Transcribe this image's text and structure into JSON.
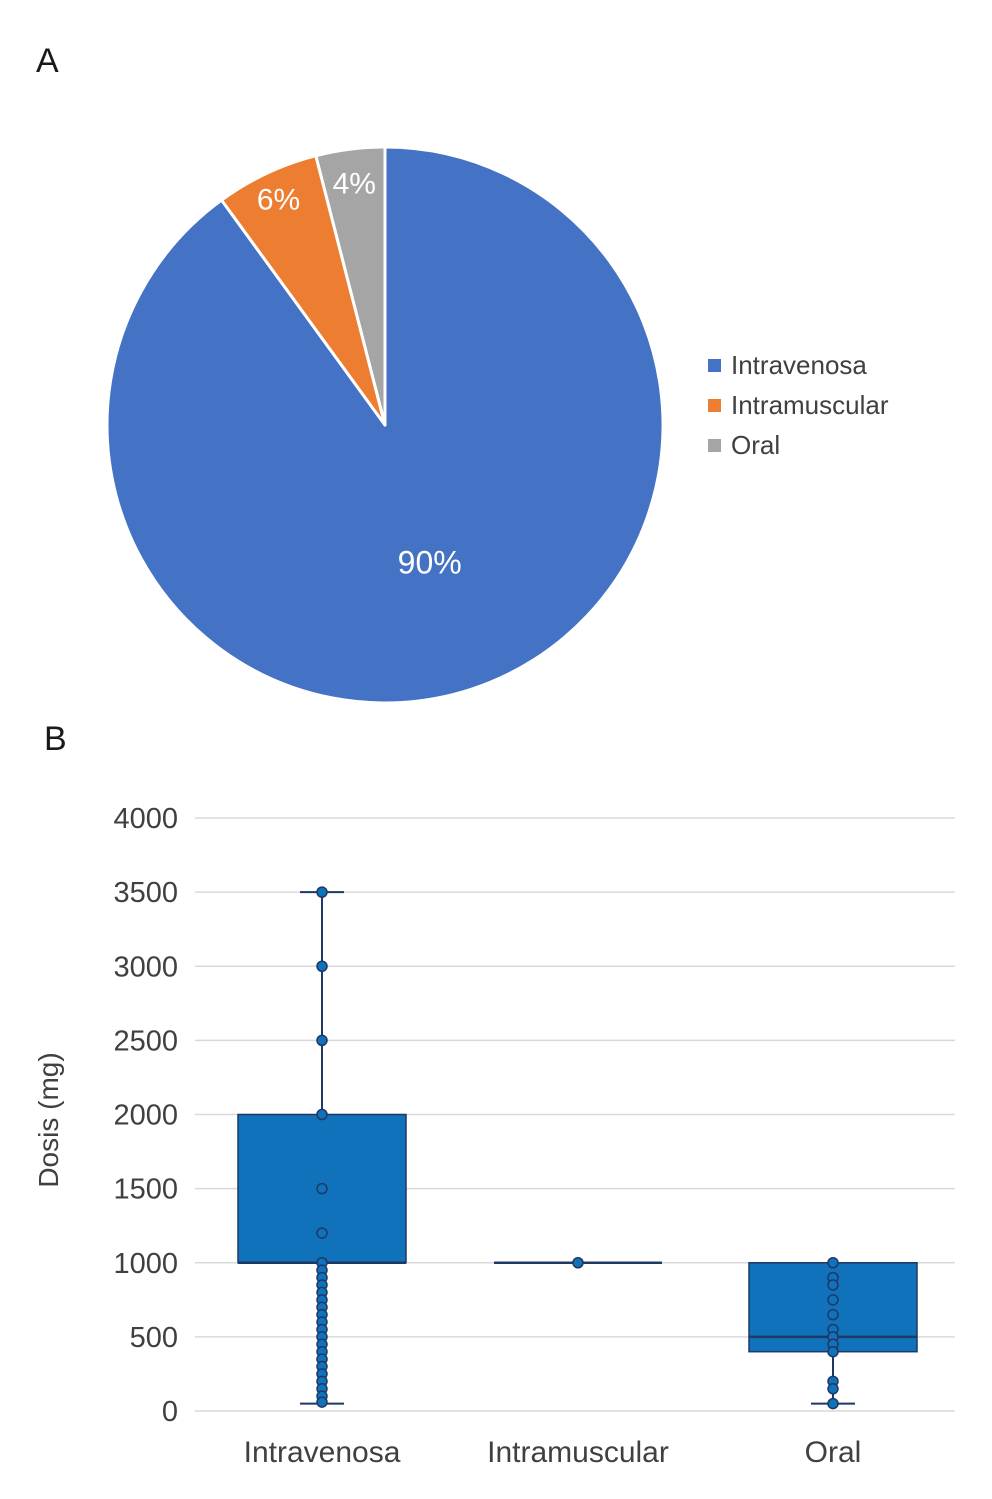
{
  "panels": {
    "a_label": "A",
    "b_label": "B"
  },
  "chart_data": [
    {
      "type": "pie",
      "title": "",
      "labels": [
        "Intravenosa",
        "Intramuscular",
        "Oral"
      ],
      "values": [
        90,
        6,
        4
      ],
      "data_labels": [
        "90%",
        "6%",
        "4%"
      ],
      "label_radius": [
        0.52,
        0.9,
        0.88
      ],
      "label_sizes": [
        32,
        30,
        30
      ],
      "colors": [
        "#4472C4",
        "#ED7D31",
        "#A5A5A5"
      ],
      "label_colors": [
        "#FFFFFF",
        "#FFFFFF",
        "#FFFFFF"
      ],
      "legend_position": "right"
    },
    {
      "type": "boxplot",
      "title": "",
      "xlabel": "",
      "ylabel": "Dosis (mg)",
      "ylim": [
        0,
        4000
      ],
      "yticks": [
        0,
        500,
        1000,
        1500,
        2000,
        2500,
        3000,
        3500,
        4000
      ],
      "categories": [
        "Intravenosa",
        "Intramuscular",
        "Oral"
      ],
      "grid": true,
      "legend_position": "none",
      "series": [
        {
          "name": "Intravenosa",
          "whisker_low": 50,
          "q1": 1000,
          "median": 1000,
          "q3": 2000,
          "whisker_high": 3500,
          "points": [
            3500,
            3000,
            2500,
            2000,
            1500,
            1200,
            1000,
            950,
            900,
            850,
            800,
            750,
            700,
            650,
            600,
            550,
            500,
            450,
            400,
            350,
            300,
            250,
            200,
            150,
            100,
            60
          ]
        },
        {
          "name": "Intramuscular",
          "whisker_low": 1000,
          "q1": 1000,
          "median": 1000,
          "q3": 1000,
          "whisker_high": 1000,
          "points": [
            1000
          ]
        },
        {
          "name": "Oral",
          "whisker_low": 50,
          "q1": 400,
          "median": 500,
          "q3": 1000,
          "whisker_high": 1000,
          "points": [
            1000,
            900,
            850,
            750,
            650,
            550,
            500,
            450,
            400,
            200,
            150,
            50
          ]
        }
      ],
      "colors": {
        "box_fill": "#1072BA",
        "line": "#1F3864",
        "point_fill": "#1072BA",
        "grid": "#D9D9D9",
        "text": "#404040"
      }
    }
  ]
}
